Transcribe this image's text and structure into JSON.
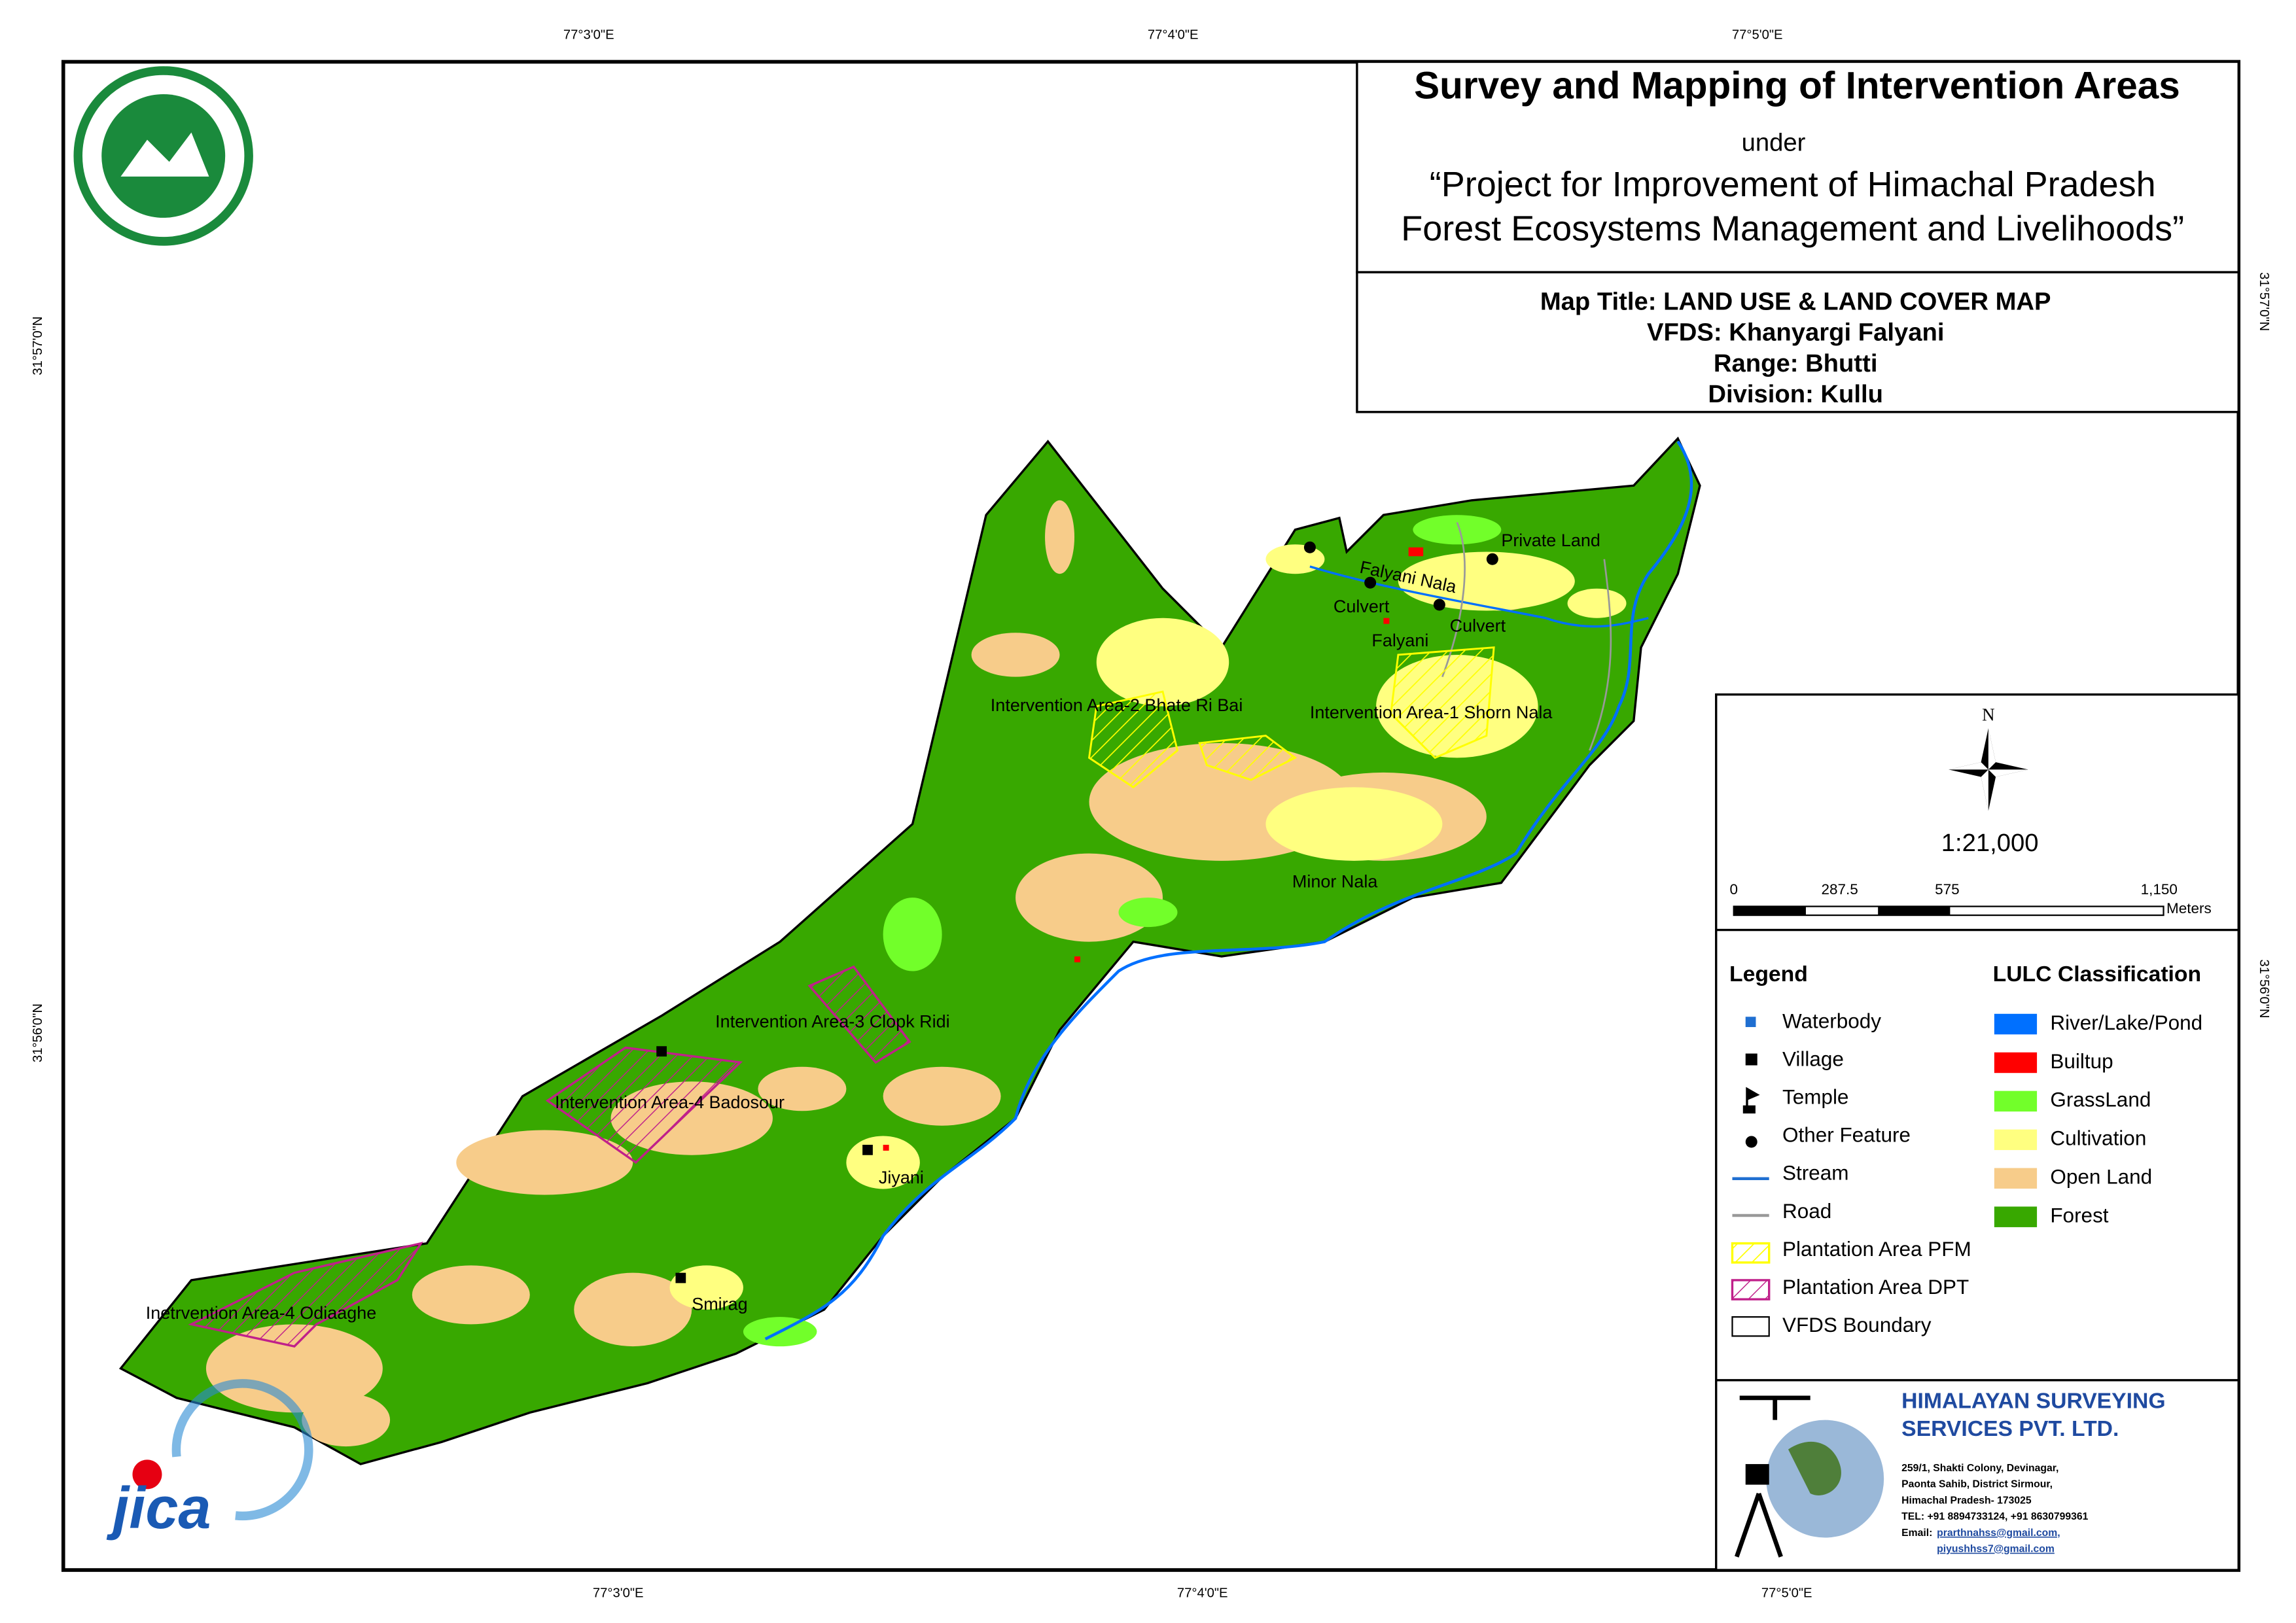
{
  "header": {
    "title": "Survey and Mapping of Intervention Areas",
    "under": "under",
    "project_line1": "“Project for Improvement of Himachal Pradesh",
    "project_line2": "Forest Ecosystems Management and Livelihoods”"
  },
  "map_info": [
    "Map Title: LAND USE & LAND COVER MAP",
    "VFDS: Khanyargi Falyani",
    "Range: Bhutti",
    "Division: Kullu"
  ],
  "coordinates": {
    "lon": [
      "77°3'0\"E",
      "77°4'0\"E",
      "77°5'0\"E"
    ],
    "lat": [
      "31°57'0\"N",
      "31°56'0\"N"
    ]
  },
  "map_labels": [
    "Private Land",
    "Falyani Nala",
    "Culvert",
    "Culvert",
    "Falyani",
    "Intervention Area-2 Bhate Ri Bai",
    "Intervention Area-1 Shorn Nala",
    "Minor Nala",
    "Intervention Area-3 Clopk Ridi",
    "Intervention Area-4 Badosour",
    "Jiyani",
    "Smirag",
    "Inetrvention Area-4 Odiaaghe"
  ],
  "north": "N",
  "scale": {
    "ratio": "1:21,000",
    "ticks": [
      "0",
      "287.5",
      "575",
      "1,150"
    ],
    "unit": "Meters"
  },
  "legend": {
    "title": "Legend",
    "items": [
      "Waterbody",
      "Village",
      "Temple",
      "Other Feature",
      "Stream",
      "Road",
      "Plantation Area PFM",
      "Plantation Area DPT",
      "VFDS Boundary"
    ]
  },
  "lulc": {
    "title": "LULC Classification",
    "items": [
      {
        "name": "River/Lake/Pond",
        "color": "#0070ff"
      },
      {
        "name": "Builtup",
        "color": "#ff0000"
      },
      {
        "name": "GrassLand",
        "color": "#72ff2a"
      },
      {
        "name": "Cultivation",
        "color": "#ffff80"
      },
      {
        "name": "Open Land",
        "color": "#f7cc8a"
      },
      {
        "name": "Forest",
        "color": "#38a800"
      }
    ]
  },
  "company": {
    "name_line1": "HIMALAYAN SURVEYING",
    "name_line2": "SERVICES PVT. LTD.",
    "address": [
      "259/1, Shakti Colony, Devinagar,",
      "Paonta Sahib, District Sirmour,",
      "Himachal Pradesh- 173025",
      "TEL: +91 8894733124, +91 8630799361"
    ],
    "email_label": "Email:",
    "emails": [
      "prarthnahss@gmail.com,",
      "piyushhss7@gmail.com"
    ]
  },
  "jica": "jica"
}
